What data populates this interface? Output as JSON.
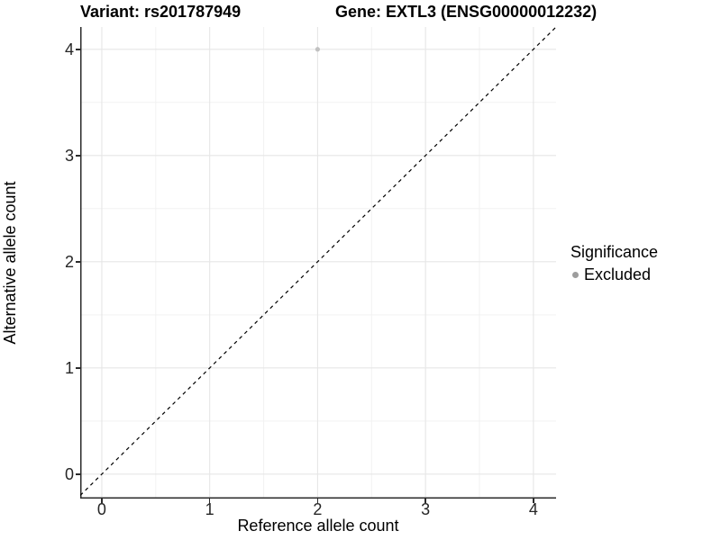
{
  "titles": {
    "left": "Variant: rs201787949",
    "right": "Gene: EXTL3 (ENSG00000012232)"
  },
  "legend": {
    "title": "Significance",
    "position": "right",
    "items": [
      {
        "label": "Excluded",
        "marker": "circle",
        "color": "#9d9d9d"
      }
    ]
  },
  "chart_data": {
    "type": "scatter",
    "title": "Variant: rs201787949 — Gene: EXTL3 (ENSG00000012232)",
    "xlabel": "Reference allele count",
    "ylabel": "Alternative allele count",
    "xlim": [
      -0.2,
      4.21
    ],
    "ylim": [
      -0.23,
      4.21
    ],
    "x_ticks": [
      0,
      1,
      2,
      3,
      4
    ],
    "y_ticks": [
      0,
      1,
      2,
      3,
      4
    ],
    "x_minor_ticks": [
      0.5,
      1.5,
      2.5,
      3.5
    ],
    "y_minor_ticks": [
      0.5,
      1.5,
      2.5,
      3.5
    ],
    "grid": "major+minor",
    "legend_position": "right",
    "series": [
      {
        "name": "Excluded",
        "color": "#c1c1c1",
        "points": [
          {
            "x": 2,
            "y": 4
          }
        ]
      }
    ],
    "reference_line": {
      "type": "identity",
      "equation": "y = x",
      "style": "dashed",
      "color": "#000000"
    },
    "colors": {
      "grid_major": "#e6e6e6",
      "grid_minor": "#f2f2f2",
      "axis_line": "#2b2b2b",
      "tick_label": "#262626",
      "background": "#ffffff"
    }
  }
}
